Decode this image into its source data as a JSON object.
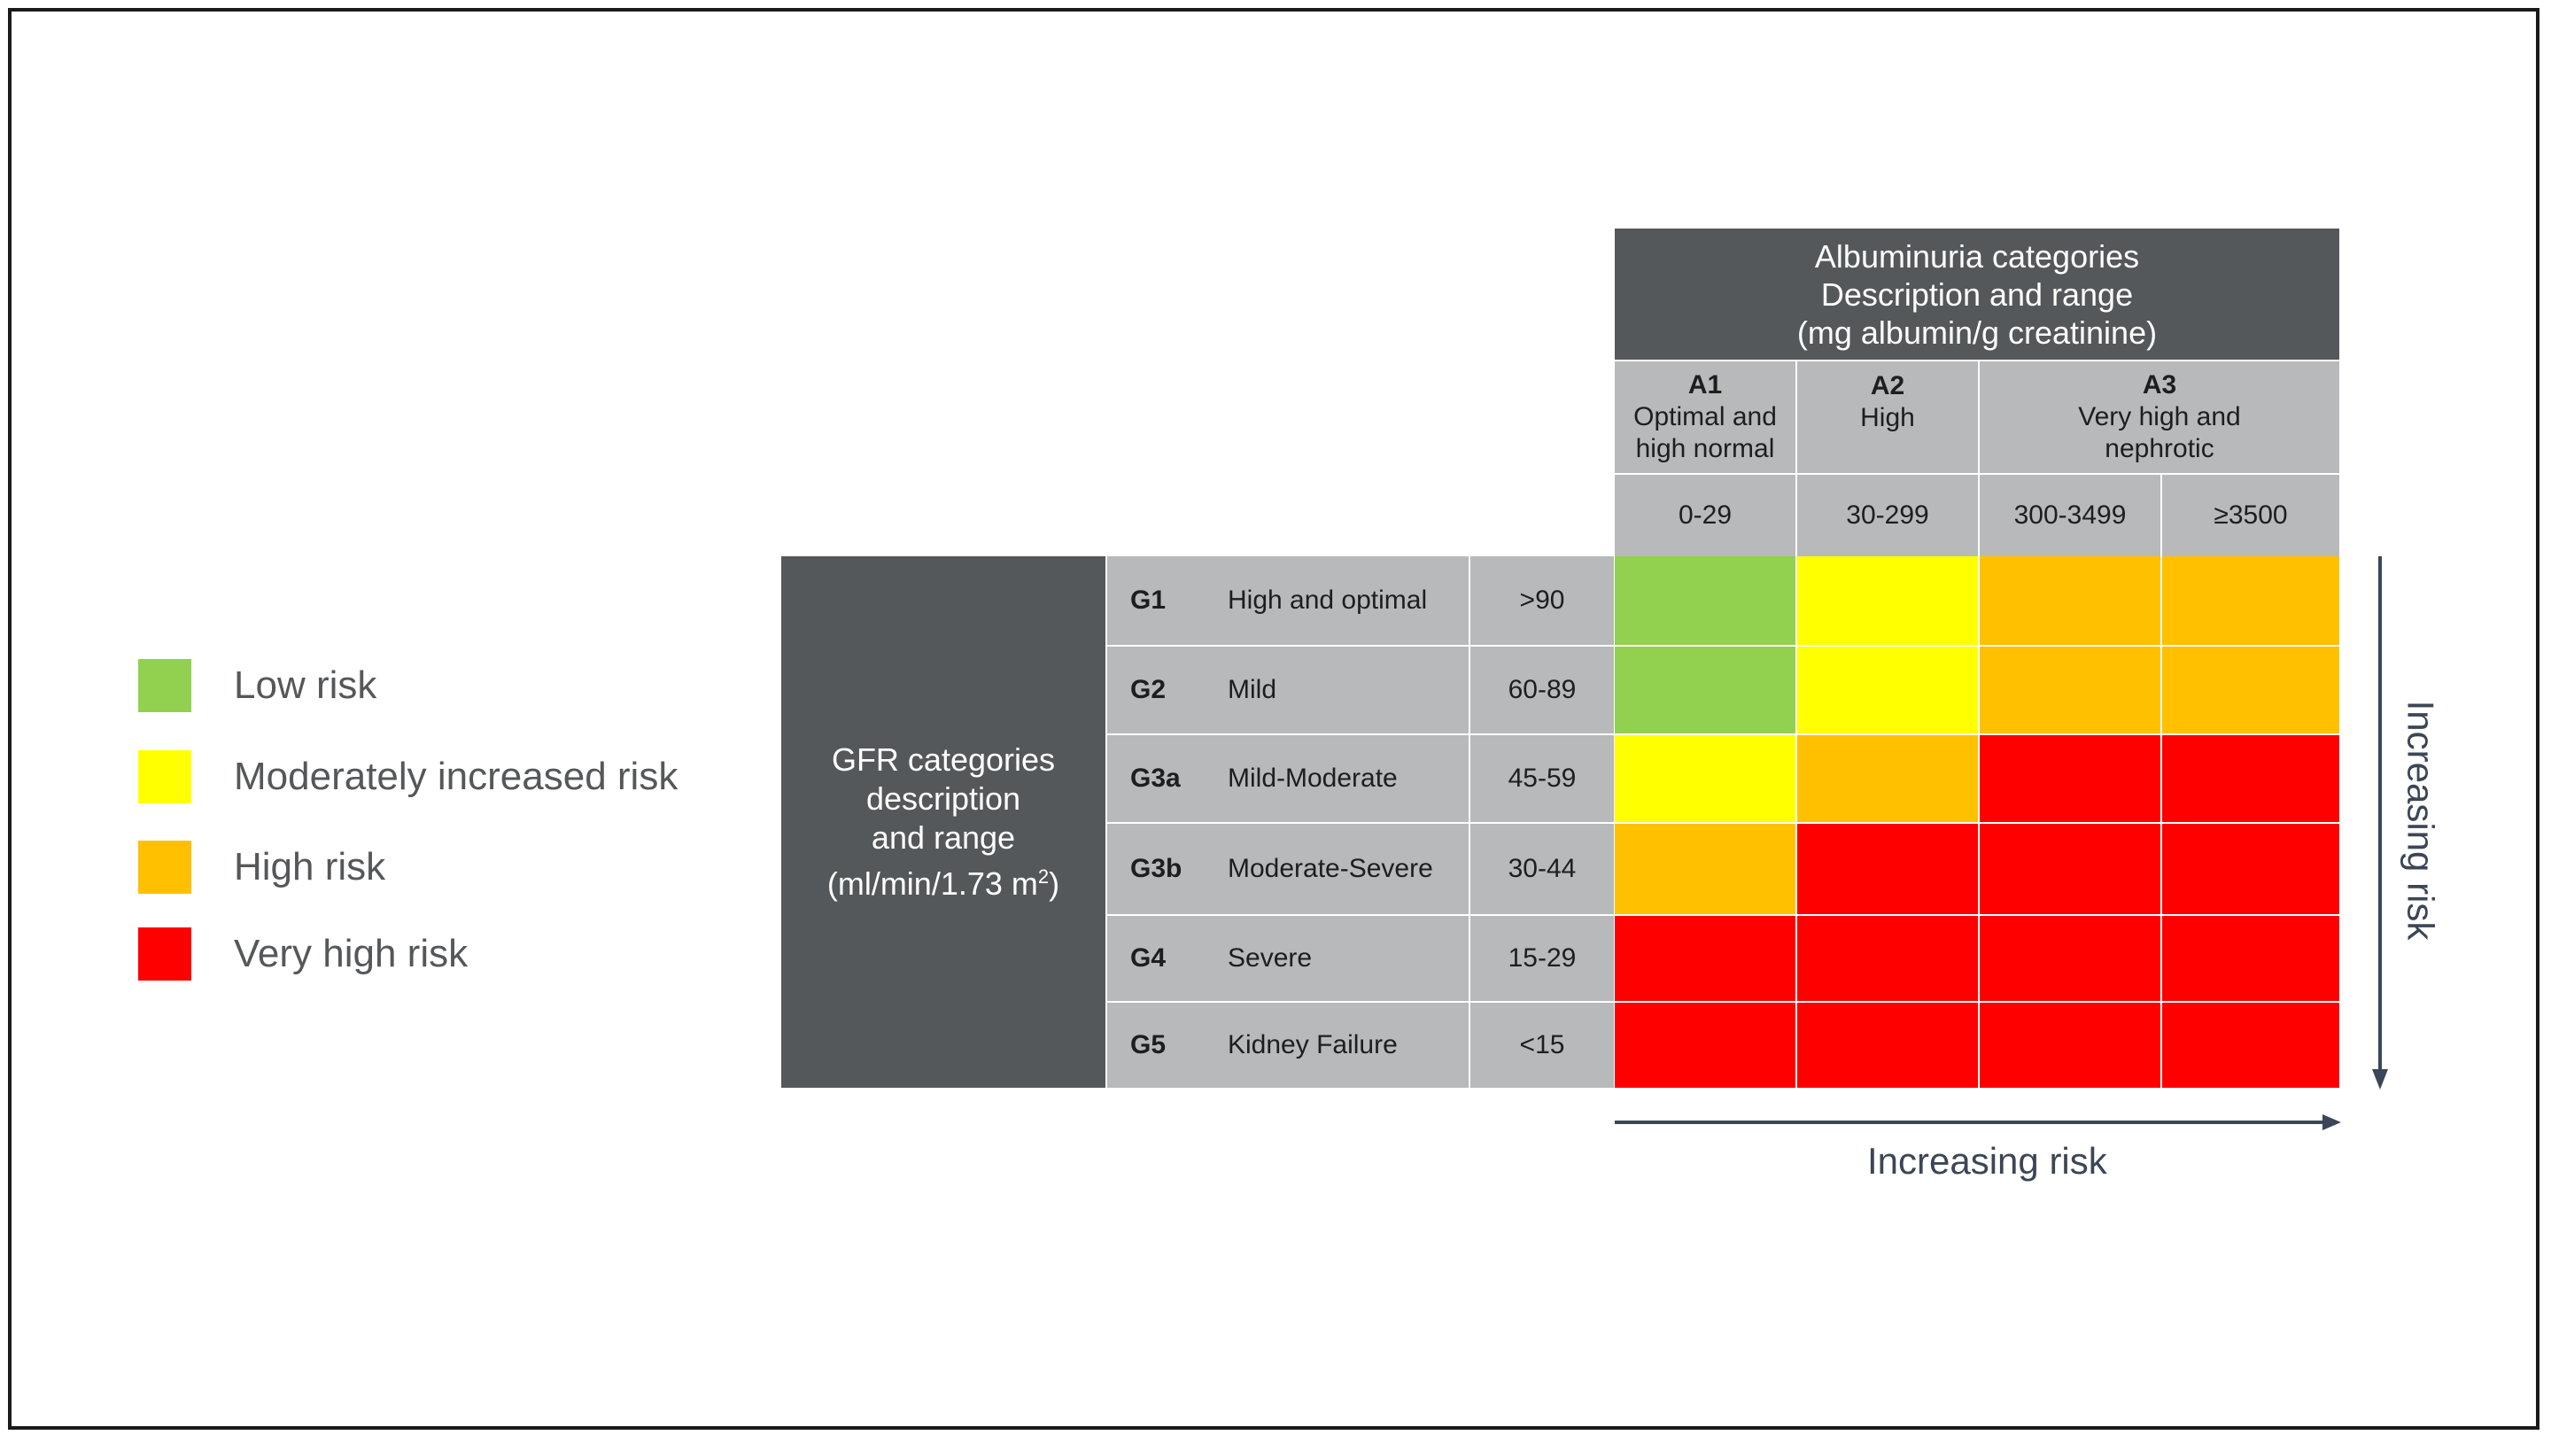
{
  "colors": {
    "low": "#92d050",
    "moderate": "#ffff00",
    "high": "#ffc000",
    "very_high": "#ff0000",
    "header_dark": "#55585b",
    "header_light": "#b8b9ba",
    "arrow": "#3b4656"
  },
  "legend": [
    {
      "label": "Low risk",
      "level": "low"
    },
    {
      "label": "Moderately increased risk",
      "level": "moderate"
    },
    {
      "label": "High risk",
      "level": "high"
    },
    {
      "label": "Very high risk",
      "level": "very_high"
    }
  ],
  "albuminuria": {
    "header_lines": [
      "Albuminuria categories",
      "Description and range",
      "(mg albumin/g creatinine)"
    ],
    "categories": [
      {
        "code": "A1",
        "description_lines": [
          "Optimal and",
          "high normal"
        ]
      },
      {
        "code": "A2",
        "description_lines": [
          "High"
        ]
      },
      {
        "code": "A3",
        "description_lines": [
          "Very high and",
          "nephrotic"
        ]
      }
    ],
    "ranges": [
      "0-29",
      "30-299",
      "300-3499",
      "≥3500"
    ]
  },
  "gfr": {
    "header_lines": [
      "GFR categories",
      "description",
      "and range"
    ],
    "header_unit": "(ml/min/1.73 m",
    "header_unit_sup": "2",
    "header_unit_close": ")",
    "rows": [
      {
        "code": "G1",
        "description": "High and optimal",
        "range": ">90"
      },
      {
        "code": "G2",
        "description": "Mild",
        "range": "60-89"
      },
      {
        "code": "G3a",
        "description": "Mild-Moderate",
        "range": "45-59"
      },
      {
        "code": "G3b",
        "description": "Moderate-Severe",
        "range": "30-44"
      },
      {
        "code": "G4",
        "description": "Severe",
        "range": "15-29"
      },
      {
        "code": "G5",
        "description": "Kidney Failure",
        "range": "<15"
      }
    ]
  },
  "risk_grid": [
    [
      "low",
      "moderate",
      "high",
      "high"
    ],
    [
      "low",
      "moderate",
      "high",
      "high"
    ],
    [
      "moderate",
      "high",
      "very_high",
      "very_high"
    ],
    [
      "high",
      "very_high",
      "very_high",
      "very_high"
    ],
    [
      "very_high",
      "very_high",
      "very_high",
      "very_high"
    ],
    [
      "very_high",
      "very_high",
      "very_high",
      "very_high"
    ]
  ],
  "axes": {
    "horizontal_label": "Increasing risk",
    "vertical_label": "Increasing risk"
  }
}
